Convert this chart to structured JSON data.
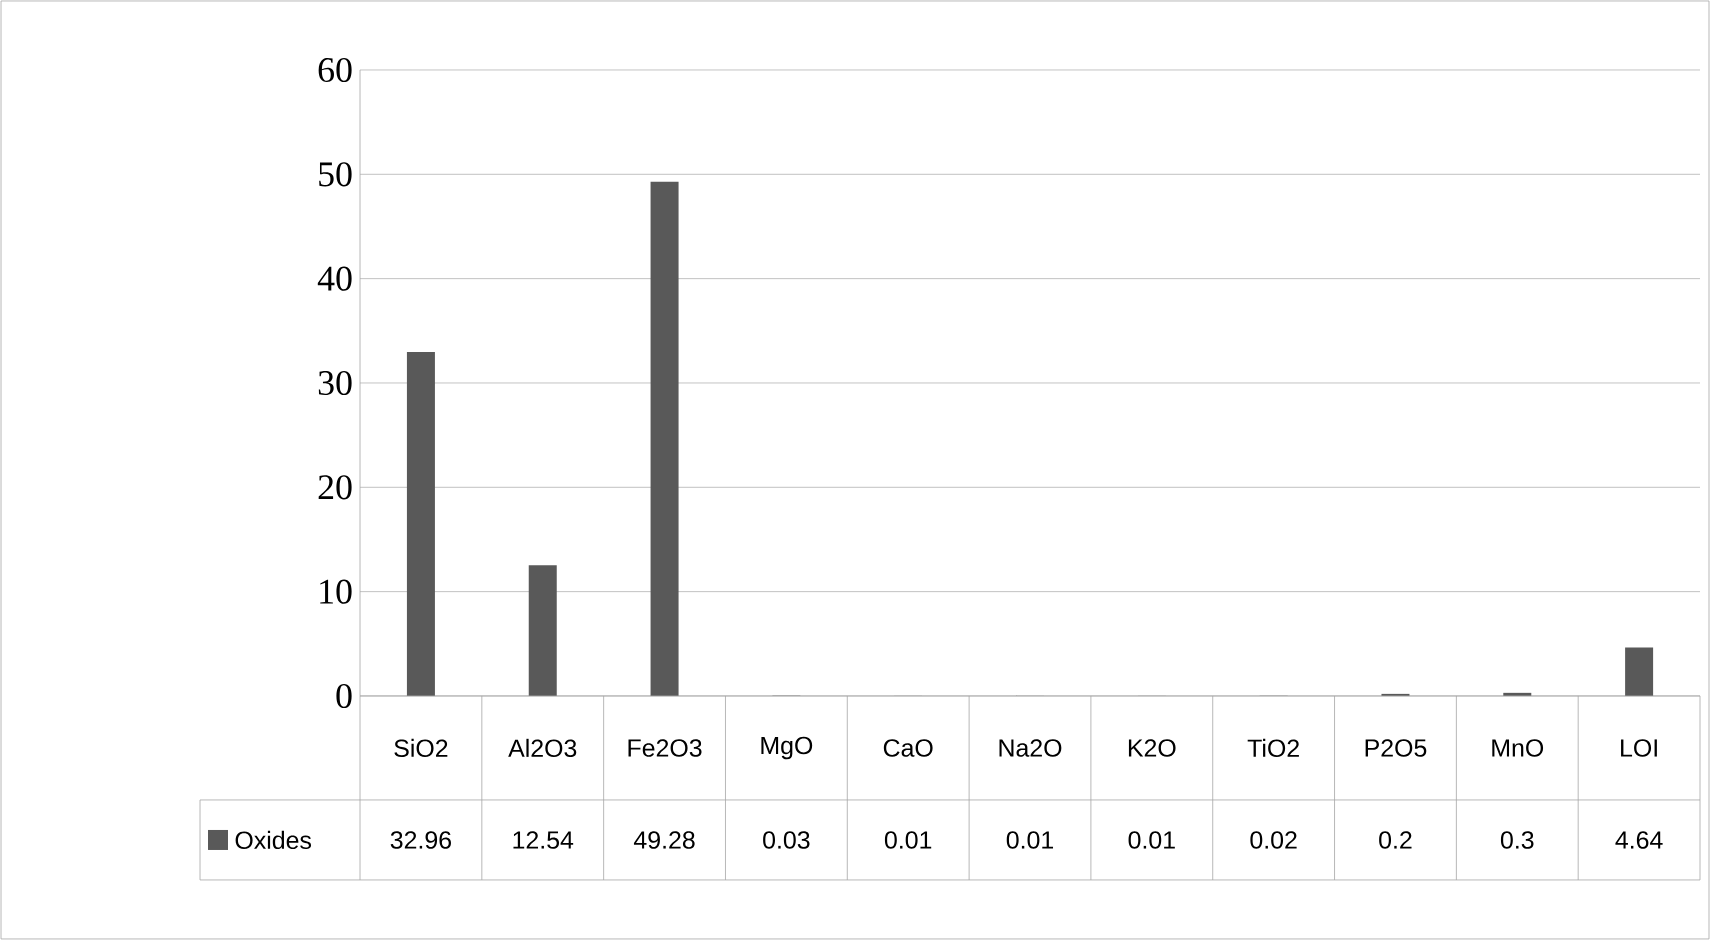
{
  "chart_data": {
    "type": "bar",
    "categories": [
      "SiO2",
      "Al2O3",
      "Fe2O3",
      "MgO",
      "CaO",
      "Na2O",
      "K2O",
      "TiO2",
      "P2O5",
      "MnO",
      "LOI"
    ],
    "series": [
      {
        "name": "Oxides",
        "color": "#595959",
        "values": [
          32.96,
          12.54,
          49.28,
          0.03,
          0.01,
          0.01,
          0.01,
          0.02,
          0.2,
          0.3,
          4.64
        ]
      }
    ],
    "ylim": [
      0,
      60
    ],
    "yticks": [
      0,
      10,
      20,
      30,
      40,
      50,
      60
    ],
    "grid": "y",
    "data_labels": true,
    "legend": "bottom"
  }
}
